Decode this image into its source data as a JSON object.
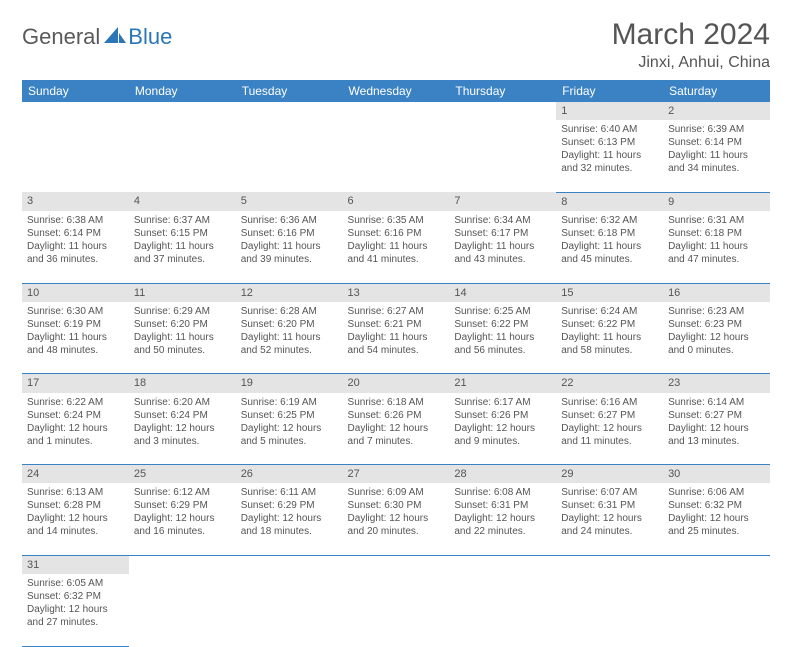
{
  "brand": {
    "text1": "General",
    "text2": "Blue",
    "color1": "#5a5a5a",
    "color2": "#2a76b8"
  },
  "title": "March 2024",
  "location": "Jinxi, Anhui, China",
  "colors": {
    "header_bg": "#3a82c4",
    "header_fg": "#ffffff",
    "daynum_bg": "#e4e4e4",
    "border": "#3a82c4",
    "text": "#555555",
    "page_bg": "#ffffff"
  },
  "weekdays": [
    "Sunday",
    "Monday",
    "Tuesday",
    "Wednesday",
    "Thursday",
    "Friday",
    "Saturday"
  ],
  "weeks": [
    [
      null,
      null,
      null,
      null,
      null,
      {
        "d": "1",
        "sunrise": "6:40 AM",
        "sunset": "6:13 PM",
        "day_h": 11,
        "day_m": 32
      },
      {
        "d": "2",
        "sunrise": "6:39 AM",
        "sunset": "6:14 PM",
        "day_h": 11,
        "day_m": 34
      }
    ],
    [
      {
        "d": "3",
        "sunrise": "6:38 AM",
        "sunset": "6:14 PM",
        "day_h": 11,
        "day_m": 36
      },
      {
        "d": "4",
        "sunrise": "6:37 AM",
        "sunset": "6:15 PM",
        "day_h": 11,
        "day_m": 37
      },
      {
        "d": "5",
        "sunrise": "6:36 AM",
        "sunset": "6:16 PM",
        "day_h": 11,
        "day_m": 39
      },
      {
        "d": "6",
        "sunrise": "6:35 AM",
        "sunset": "6:16 PM",
        "day_h": 11,
        "day_m": 41
      },
      {
        "d": "7",
        "sunrise": "6:34 AM",
        "sunset": "6:17 PM",
        "day_h": 11,
        "day_m": 43
      },
      {
        "d": "8",
        "sunrise": "6:32 AM",
        "sunset": "6:18 PM",
        "day_h": 11,
        "day_m": 45
      },
      {
        "d": "9",
        "sunrise": "6:31 AM",
        "sunset": "6:18 PM",
        "day_h": 11,
        "day_m": 47
      }
    ],
    [
      {
        "d": "10",
        "sunrise": "6:30 AM",
        "sunset": "6:19 PM",
        "day_h": 11,
        "day_m": 48
      },
      {
        "d": "11",
        "sunrise": "6:29 AM",
        "sunset": "6:20 PM",
        "day_h": 11,
        "day_m": 50
      },
      {
        "d": "12",
        "sunrise": "6:28 AM",
        "sunset": "6:20 PM",
        "day_h": 11,
        "day_m": 52
      },
      {
        "d": "13",
        "sunrise": "6:27 AM",
        "sunset": "6:21 PM",
        "day_h": 11,
        "day_m": 54
      },
      {
        "d": "14",
        "sunrise": "6:25 AM",
        "sunset": "6:22 PM",
        "day_h": 11,
        "day_m": 56
      },
      {
        "d": "15",
        "sunrise": "6:24 AM",
        "sunset": "6:22 PM",
        "day_h": 11,
        "day_m": 58
      },
      {
        "d": "16",
        "sunrise": "6:23 AM",
        "sunset": "6:23 PM",
        "day_h": 12,
        "day_m": 0
      }
    ],
    [
      {
        "d": "17",
        "sunrise": "6:22 AM",
        "sunset": "6:24 PM",
        "day_h": 12,
        "day_m": 1
      },
      {
        "d": "18",
        "sunrise": "6:20 AM",
        "sunset": "6:24 PM",
        "day_h": 12,
        "day_m": 3
      },
      {
        "d": "19",
        "sunrise": "6:19 AM",
        "sunset": "6:25 PM",
        "day_h": 12,
        "day_m": 5
      },
      {
        "d": "20",
        "sunrise": "6:18 AM",
        "sunset": "6:26 PM",
        "day_h": 12,
        "day_m": 7
      },
      {
        "d": "21",
        "sunrise": "6:17 AM",
        "sunset": "6:26 PM",
        "day_h": 12,
        "day_m": 9
      },
      {
        "d": "22",
        "sunrise": "6:16 AM",
        "sunset": "6:27 PM",
        "day_h": 12,
        "day_m": 11
      },
      {
        "d": "23",
        "sunrise": "6:14 AM",
        "sunset": "6:27 PM",
        "day_h": 12,
        "day_m": 13
      }
    ],
    [
      {
        "d": "24",
        "sunrise": "6:13 AM",
        "sunset": "6:28 PM",
        "day_h": 12,
        "day_m": 14
      },
      {
        "d": "25",
        "sunrise": "6:12 AM",
        "sunset": "6:29 PM",
        "day_h": 12,
        "day_m": 16
      },
      {
        "d": "26",
        "sunrise": "6:11 AM",
        "sunset": "6:29 PM",
        "day_h": 12,
        "day_m": 18
      },
      {
        "d": "27",
        "sunrise": "6:09 AM",
        "sunset": "6:30 PM",
        "day_h": 12,
        "day_m": 20
      },
      {
        "d": "28",
        "sunrise": "6:08 AM",
        "sunset": "6:31 PM",
        "day_h": 12,
        "day_m": 22
      },
      {
        "d": "29",
        "sunrise": "6:07 AM",
        "sunset": "6:31 PM",
        "day_h": 12,
        "day_m": 24
      },
      {
        "d": "30",
        "sunrise": "6:06 AM",
        "sunset": "6:32 PM",
        "day_h": 12,
        "day_m": 25
      }
    ],
    [
      {
        "d": "31",
        "sunrise": "6:05 AM",
        "sunset": "6:32 PM",
        "day_h": 12,
        "day_m": 27
      },
      null,
      null,
      null,
      null,
      null,
      null
    ]
  ],
  "labels": {
    "sunrise": "Sunrise:",
    "sunset": "Sunset:",
    "daylight": "Daylight:",
    "hours": "hours",
    "and": "and",
    "minutes": "minutes."
  }
}
